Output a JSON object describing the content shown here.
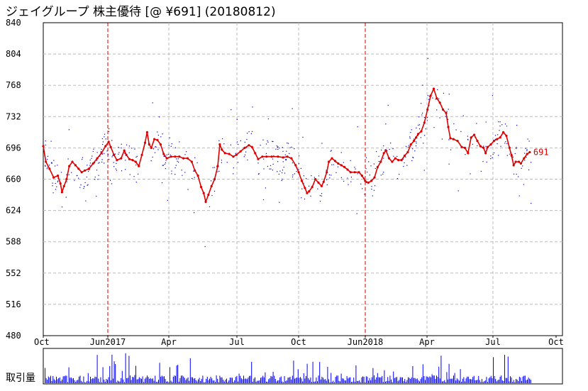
{
  "header": {
    "title": "ジェイグループ 株主優待  [@ ¥691] (20180812)"
  },
  "colors": {
    "price_line": "#dd0000",
    "scatter": "#0000cc",
    "volume": "#0000ff",
    "grid": "#bbbbbb",
    "year_marker": "#cc0000"
  },
  "chart_data": {
    "type": "line",
    "title": "ジェイグループ 株主優待  [@ ¥691] (20180812)",
    "xlabel": "",
    "ylabel": "",
    "ylim": [
      480,
      840
    ],
    "y_ticks": [
      840,
      804,
      768,
      732,
      696,
      660,
      624,
      588,
      552,
      516,
      480
    ],
    "x_ticks": [
      "Oct",
      "Jun2017",
      "Apr",
      "Jul",
      "Oct",
      "Jun2018",
      "Apr",
      "Jul",
      "Oct"
    ],
    "year_markers": [
      "Jun2017",
      "Jun2018"
    ],
    "grid": true,
    "last_value": 691,
    "last_value_label": "691",
    "volume_label": "取引量",
    "series": [
      {
        "values": [
          [
            0.0,
            698
          ],
          [
            0.005,
            680
          ],
          [
            0.012,
            672
          ],
          [
            0.02,
            662
          ],
          [
            0.028,
            664
          ],
          [
            0.033,
            655
          ],
          [
            0.036,
            645
          ],
          [
            0.04,
            652
          ],
          [
            0.045,
            660
          ],
          [
            0.05,
            675
          ],
          [
            0.056,
            680
          ],
          [
            0.062,
            676
          ],
          [
            0.068,
            672
          ],
          [
            0.074,
            668
          ],
          [
            0.08,
            670
          ],
          [
            0.088,
            672
          ],
          [
            0.096,
            678
          ],
          [
            0.104,
            684
          ],
          [
            0.112,
            690
          ],
          [
            0.12,
            698
          ],
          [
            0.126,
            703
          ],
          [
            0.13,
            697
          ],
          [
            0.136,
            688
          ],
          [
            0.142,
            682
          ],
          [
            0.15,
            684
          ],
          [
            0.156,
            693
          ],
          [
            0.16,
            688
          ],
          [
            0.166,
            683
          ],
          [
            0.172,
            682
          ],
          [
            0.178,
            680
          ],
          [
            0.184,
            675
          ],
          [
            0.19,
            688
          ],
          [
            0.196,
            702
          ],
          [
            0.2,
            714
          ],
          [
            0.204,
            700
          ],
          [
            0.208,
            696
          ],
          [
            0.214,
            706
          ],
          [
            0.22,
            705
          ],
          [
            0.226,
            700
          ],
          [
            0.232,
            689
          ],
          [
            0.238,
            684
          ],
          [
            0.246,
            686
          ],
          [
            0.254,
            686
          ],
          [
            0.262,
            686
          ],
          [
            0.27,
            684
          ],
          [
            0.278,
            684
          ],
          [
            0.286,
            680
          ],
          [
            0.292,
            670
          ],
          [
            0.298,
            664
          ],
          [
            0.304,
            651
          ],
          [
            0.309,
            644
          ],
          [
            0.313,
            634
          ],
          [
            0.318,
            642
          ],
          [
            0.324,
            652
          ],
          [
            0.33,
            660
          ],
          [
            0.336,
            675
          ],
          [
            0.34,
            700
          ],
          [
            0.344,
            694
          ],
          [
            0.35,
            690
          ],
          [
            0.358,
            689
          ],
          [
            0.366,
            686
          ],
          [
            0.372,
            688
          ],
          [
            0.38,
            692
          ],
          [
            0.388,
            696
          ],
          [
            0.396,
            699
          ],
          [
            0.402,
            697
          ],
          [
            0.408,
            690
          ],
          [
            0.414,
            683
          ],
          [
            0.422,
            686
          ],
          [
            0.43,
            686
          ],
          [
            0.44,
            686
          ],
          [
            0.452,
            686
          ],
          [
            0.462,
            685
          ],
          [
            0.47,
            686
          ],
          [
            0.478,
            684
          ],
          [
            0.486,
            676
          ],
          [
            0.492,
            668
          ],
          [
            0.498,
            658
          ],
          [
            0.504,
            650
          ],
          [
            0.508,
            644
          ],
          [
            0.512,
            646
          ],
          [
            0.518,
            651
          ],
          [
            0.524,
            660
          ],
          [
            0.53,
            656
          ],
          [
            0.536,
            652
          ],
          [
            0.54,
            657
          ],
          [
            0.546,
            668
          ],
          [
            0.55,
            680
          ],
          [
            0.556,
            684
          ],
          [
            0.562,
            681
          ],
          [
            0.568,
            678
          ],
          [
            0.574,
            676
          ],
          [
            0.58,
            674
          ],
          [
            0.586,
            671
          ],
          [
            0.592,
            668
          ],
          [
            0.6,
            668
          ],
          [
            0.608,
            668
          ],
          [
            0.614,
            664
          ],
          [
            0.62,
            658
          ],
          [
            0.626,
            656
          ],
          [
            0.632,
            658
          ],
          [
            0.638,
            662
          ],
          [
            0.644,
            674
          ],
          [
            0.65,
            680
          ],
          [
            0.656,
            690
          ],
          [
            0.66,
            693
          ],
          [
            0.666,
            684
          ],
          [
            0.672,
            680
          ],
          [
            0.678,
            684
          ],
          [
            0.684,
            682
          ],
          [
            0.69,
            682
          ],
          [
            0.696,
            687
          ],
          [
            0.702,
            691
          ],
          [
            0.708,
            700
          ],
          [
            0.714,
            704
          ],
          [
            0.718,
            708
          ],
          [
            0.722,
            712
          ],
          [
            0.728,
            715
          ],
          [
            0.734,
            725
          ],
          [
            0.74,
            740
          ],
          [
            0.746,
            756
          ],
          [
            0.752,
            764
          ],
          [
            0.758,
            753
          ],
          [
            0.764,
            748
          ],
          [
            0.77,
            740
          ],
          [
            0.776,
            736
          ],
          [
            0.78,
            720
          ],
          [
            0.784,
            707
          ],
          [
            0.79,
            706
          ],
          [
            0.798,
            704
          ],
          [
            0.806,
            697
          ],
          [
            0.812,
            696
          ],
          [
            0.818,
            690
          ],
          [
            0.824,
            708
          ],
          [
            0.83,
            711
          ],
          [
            0.836,
            704
          ],
          [
            0.842,
            698
          ],
          [
            0.848,
            696
          ],
          [
            0.852,
            690
          ],
          [
            0.856,
            697
          ],
          [
            0.862,
            700
          ],
          [
            0.868,
            704
          ],
          [
            0.874,
            706
          ],
          [
            0.88,
            708
          ],
          [
            0.886,
            714
          ],
          [
            0.892,
            710
          ],
          [
            0.898,
            696
          ],
          [
            0.902,
            687
          ],
          [
            0.906,
            676
          ],
          [
            0.91,
            680
          ],
          [
            0.916,
            680
          ],
          [
            0.92,
            678
          ],
          [
            0.926,
            684
          ],
          [
            0.932,
            689
          ],
          [
            0.937,
            691
          ]
        ]
      }
    ]
  }
}
